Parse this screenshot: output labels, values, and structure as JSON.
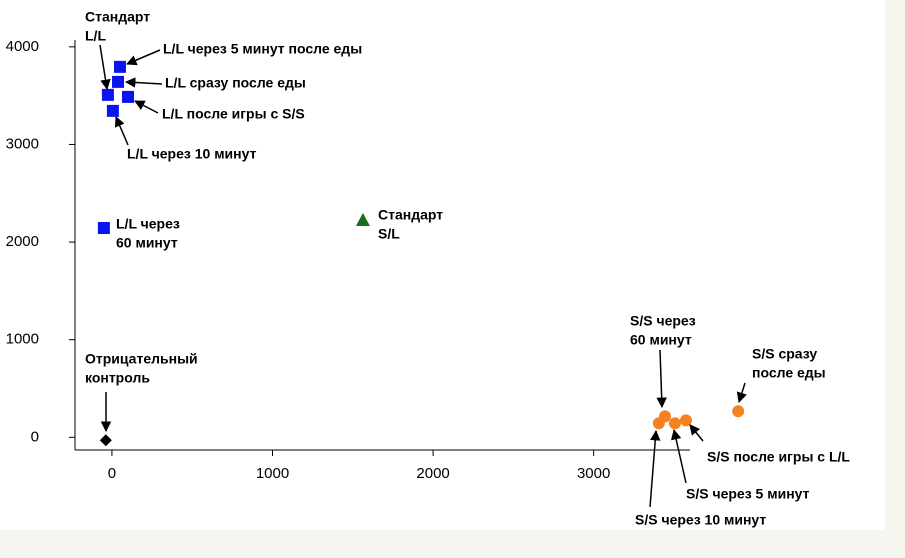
{
  "chart_data": {
    "type": "scatter",
    "xlim": [
      -230,
      3600
    ],
    "ylim": [
      -130,
      4070
    ],
    "xticks": [
      0,
      1000,
      2000,
      3000
    ],
    "yticks": [
      0,
      1000,
      2000,
      3000,
      4000
    ],
    "series": [
      {
        "color": "#0a14f0",
        "marker": "square",
        "x": [
          50,
          -25,
          38,
          100,
          6,
          -50
        ],
        "y": [
          3795,
          3508,
          3641,
          3487,
          3344,
          2144
        ]
      },
      {
        "color": "#1a6e1a",
        "marker": "triangle",
        "x": [
          1563
        ],
        "y": [
          2226
        ]
      },
      {
        "color": "#000000",
        "marker": "diamond",
        "x": [
          -38
        ],
        "y": [
          -30
        ]
      },
      {
        "color": "#f58220",
        "marker": "circle",
        "x": [
          3444,
          3406,
          3506,
          3575,
          3900
        ],
        "y": [
          215,
          144,
          144,
          174,
          267
        ]
      }
    ],
    "annotations": [
      {
        "text": [
          "Стандарт",
          "L/L"
        ]
      },
      {
        "text": [
          "L/L через 5 минут после еды"
        ]
      },
      {
        "text": [
          "L/L сразу после еды"
        ]
      },
      {
        "text": [
          "L/L после игры с S/S"
        ]
      },
      {
        "text": [
          "L/L через 10 минут"
        ]
      },
      {
        "text": [
          "L/L через",
          "60 минут"
        ]
      },
      {
        "text": [
          "Стандарт",
          "S/L"
        ]
      },
      {
        "text": [
          "Отрицательный",
          "контроль"
        ]
      },
      {
        "text": [
          "S/S через",
          "60 минут"
        ]
      },
      {
        "text": [
          "S/S сразу",
          "после еды"
        ]
      },
      {
        "text": [
          "S/S после игры с L/L"
        ]
      },
      {
        "text": [
          "S/S через 5 минут"
        ]
      },
      {
        "text": [
          "S/S через 10 минут"
        ]
      }
    ]
  }
}
